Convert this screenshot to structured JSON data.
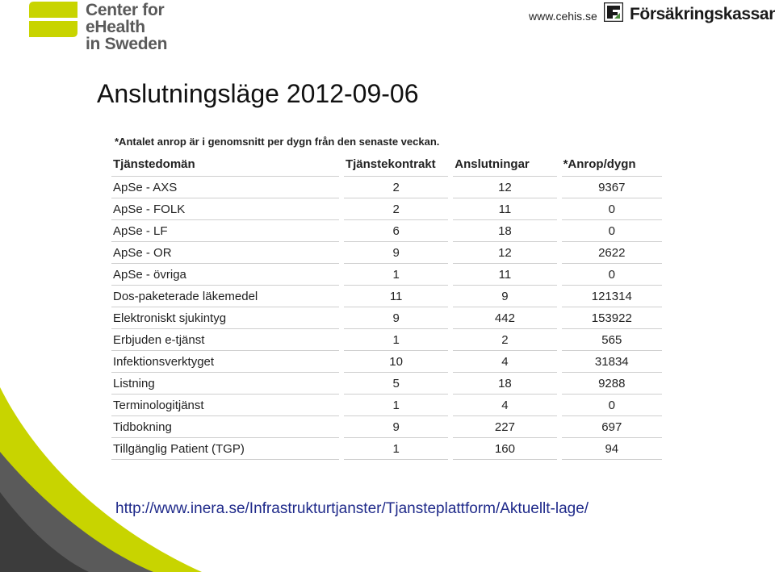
{
  "header": {
    "logo_lines": [
      "Center for eHealth",
      "in Sweden"
    ],
    "site_url": "www.cehis.se",
    "partner_name": "Försäkringskassan",
    "brand_colors": {
      "green": "#c8d400",
      "grey": "#5a5a5a",
      "dark": "#3c3c3c"
    }
  },
  "slide": {
    "title": "Anslutningsläge 2012-09-06",
    "footnote": "*Antalet anrop är i genomsnitt per dygn från den senaste veckan.",
    "source_url": "http://www.inera.se/Infrastrukturtjanster/Tjansteplattform/Aktuellt-lage/"
  },
  "table": {
    "headers": [
      "Tjänstedomän",
      "Tjänstekontrakt",
      "Anslutningar",
      "*Anrop/dygn"
    ],
    "rows": [
      [
        "ApSe - AXS",
        "2",
        "12",
        "9367"
      ],
      [
        "ApSe - FOLK",
        "2",
        "11",
        "0"
      ],
      [
        "ApSe - LF",
        "6",
        "18",
        "0"
      ],
      [
        "ApSe - OR",
        "9",
        "12",
        "2622"
      ],
      [
        "ApSe - övriga",
        "1",
        "11",
        "0"
      ],
      [
        "Dos-paketerade läkemedel",
        "11",
        "9",
        "121314"
      ],
      [
        "Elektroniskt sjukintyg",
        "9",
        "442",
        "153922"
      ],
      [
        "Erbjuden e-tjänst",
        "1",
        "2",
        "565"
      ],
      [
        "Infektionsverktyget",
        "10",
        "4",
        "31834"
      ],
      [
        "Listning",
        "5",
        "18",
        "9288"
      ],
      [
        "Terminologitjänst",
        "1",
        "4",
        "0"
      ],
      [
        "Tidbokning",
        "9",
        "227",
        "697"
      ],
      [
        "Tillgänglig Patient (TGP)",
        "1",
        "160",
        "94"
      ]
    ]
  }
}
